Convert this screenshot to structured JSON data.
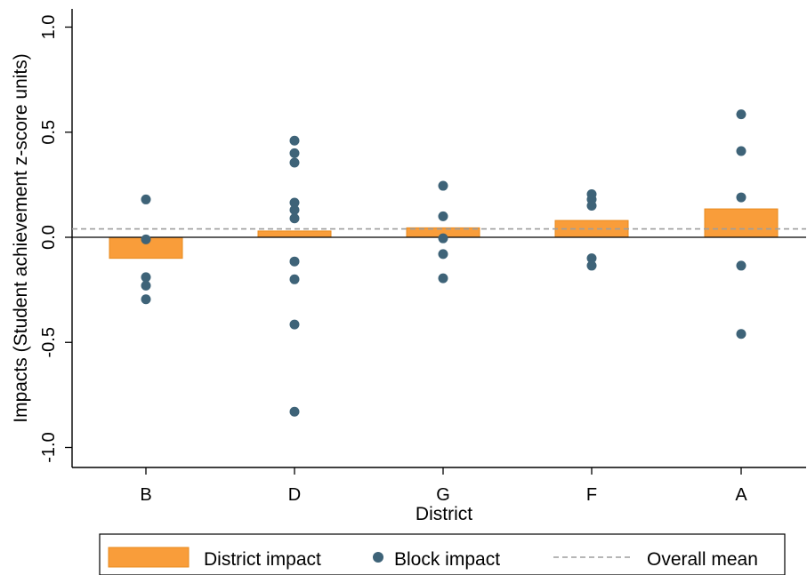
{
  "chart_data": {
    "type": "bar",
    "xlabel": "District",
    "ylabel": "Impacts (Student achievement z-score units)",
    "categories": [
      "B",
      "D",
      "G",
      "F",
      "A"
    ],
    "ylim": [
      -1.1,
      1.1
    ],
    "yticks": [
      -1.0,
      -0.5,
      0.0,
      0.5,
      1.0
    ],
    "ytick_labels": [
      "-1.0",
      "-0.5",
      "0.0",
      "0.5",
      "1.0"
    ],
    "series": [
      {
        "name": "District impact",
        "type": "bar",
        "color": "#F99D3A",
        "values": [
          -0.1,
          0.03,
          0.045,
          0.08,
          0.135
        ]
      },
      {
        "name": "Block impact",
        "type": "scatter",
        "color": "#3E6378",
        "points": [
          {
            "x": "B",
            "y": 0.18
          },
          {
            "x": "B",
            "y": -0.01
          },
          {
            "x": "B",
            "y": -0.19
          },
          {
            "x": "B",
            "y": -0.23
          },
          {
            "x": "B",
            "y": -0.295
          },
          {
            "x": "D",
            "y": 0.46
          },
          {
            "x": "D",
            "y": 0.4
          },
          {
            "x": "D",
            "y": 0.355
          },
          {
            "x": "D",
            "y": 0.165
          },
          {
            "x": "D",
            "y": 0.13
          },
          {
            "x": "D",
            "y": 0.09
          },
          {
            "x": "D",
            "y": -0.115
          },
          {
            "x": "D",
            "y": -0.2
          },
          {
            "x": "D",
            "y": -0.415
          },
          {
            "x": "D",
            "y": -0.83
          },
          {
            "x": "G",
            "y": 0.245
          },
          {
            "x": "G",
            "y": 0.1
          },
          {
            "x": "G",
            "y": -0.005
          },
          {
            "x": "G",
            "y": -0.08
          },
          {
            "x": "G",
            "y": -0.195
          },
          {
            "x": "F",
            "y": 0.205
          },
          {
            "x": "F",
            "y": 0.18
          },
          {
            "x": "F",
            "y": 0.15
          },
          {
            "x": "F",
            "y": -0.1
          },
          {
            "x": "F",
            "y": -0.135
          },
          {
            "x": "A",
            "y": 0.585
          },
          {
            "x": "A",
            "y": 0.41
          },
          {
            "x": "A",
            "y": 0.19
          },
          {
            "x": "A",
            "y": -0.135
          },
          {
            "x": "A",
            "y": -0.46
          }
        ]
      },
      {
        "name": "Overall mean",
        "type": "hline",
        "color": "#9E9E9E",
        "value": 0.04
      }
    ],
    "zero_line": true,
    "grid": false,
    "legend_position": "bottom"
  }
}
